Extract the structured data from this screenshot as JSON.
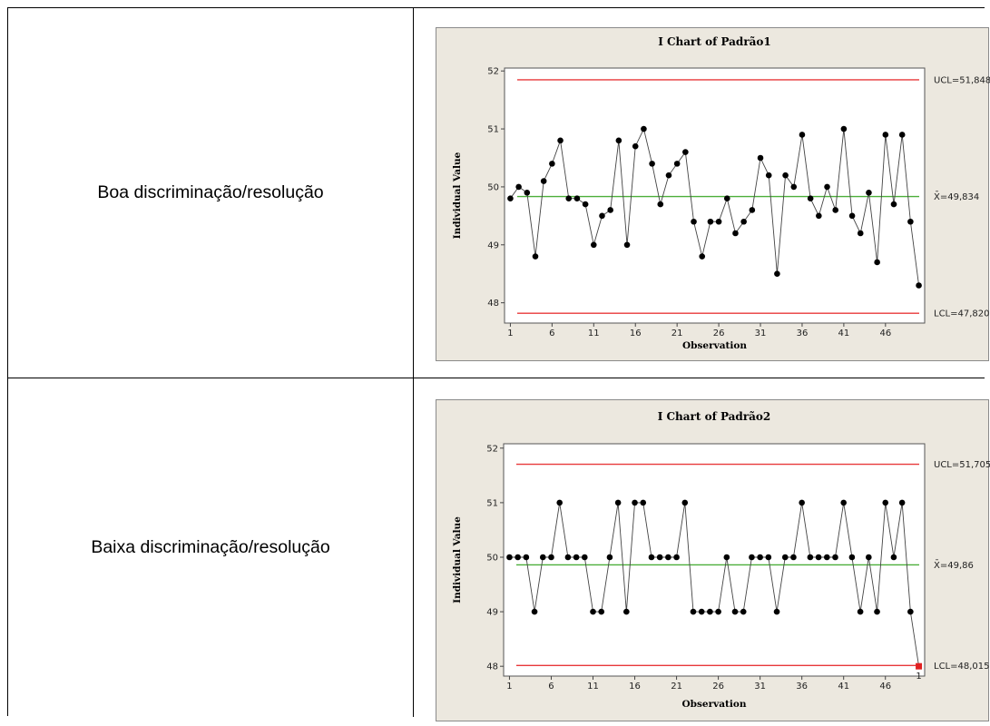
{
  "rows": [
    {
      "label": "Boa discriminação/resolução"
    },
    {
      "label": "Baixa discriminação/resolução"
    }
  ],
  "colors": {
    "ucl_lcl": "#e8383a",
    "center": "#4caf3a",
    "data": "#000000",
    "out_of_control": "#e02020",
    "frame": "#ece8df"
  },
  "chart_data": [
    {
      "type": "line",
      "title": "I Chart of Padrão1",
      "xlabel": "Observation",
      "ylabel": "Individual Value",
      "x_ticks": [
        "1",
        "6",
        "11",
        "16",
        "21",
        "26",
        "31",
        "36",
        "41",
        "46"
      ],
      "y_ticks": [
        "48",
        "49",
        "50",
        "51",
        "52"
      ],
      "ylim": [
        47.65,
        52.05
      ],
      "xlim": [
        0.3,
        50.7
      ],
      "values": [
        49.8,
        50.0,
        49.9,
        48.8,
        50.1,
        50.4,
        50.8,
        49.8,
        49.8,
        49.7,
        49.0,
        49.5,
        49.6,
        50.8,
        49.0,
        50.7,
        51.0,
        50.4,
        49.7,
        50.2,
        50.4,
        50.6,
        49.4,
        48.8,
        49.4,
        49.4,
        49.8,
        49.2,
        49.4,
        49.6,
        50.5,
        50.2,
        48.5,
        50.2,
        50.0,
        50.9,
        49.8,
        49.5,
        50.0,
        49.6,
        51.0,
        49.5,
        49.2,
        49.9,
        48.7,
        50.9,
        49.7,
        50.9,
        49.4,
        48.3
      ],
      "ucl": 51.848,
      "center": 49.834,
      "lcl": 47.82,
      "ucl_label": "UCL=51,848",
      "center_label": "X̄=49,834",
      "lcl_label": "LCL=47,820",
      "out_of_control": []
    },
    {
      "type": "line",
      "title": "I Chart of Padrão2",
      "xlabel": "Observation",
      "ylabel": "Individual Value",
      "x_ticks": [
        "1",
        "6",
        "11",
        "16",
        "21",
        "26",
        "31",
        "36",
        "41",
        "46"
      ],
      "y_ticks": [
        "48",
        "49",
        "50",
        "51",
        "52"
      ],
      "ylim": [
        47.82,
        52.08
      ],
      "xlim": [
        0.3,
        50.7
      ],
      "values": [
        50,
        50,
        50,
        49,
        50,
        50,
        51,
        50,
        50,
        50,
        49,
        49,
        50,
        51,
        49,
        51,
        51,
        50,
        50,
        50,
        50,
        51,
        49,
        49,
        49,
        49,
        50,
        49,
        49,
        50,
        50,
        50,
        49,
        50,
        50,
        51,
        50,
        50,
        50,
        50,
        51,
        50,
        49,
        50,
        49,
        51,
        50,
        51,
        49,
        48
      ],
      "ucl": 51.705,
      "center": 49.86,
      "lcl": 48.015,
      "ucl_label": "UCL=51,705",
      "center_label": "X̄=49,86",
      "lcl_label": "LCL=48,015",
      "out_of_control": [
        50
      ],
      "out_of_control_marker": "1"
    }
  ]
}
